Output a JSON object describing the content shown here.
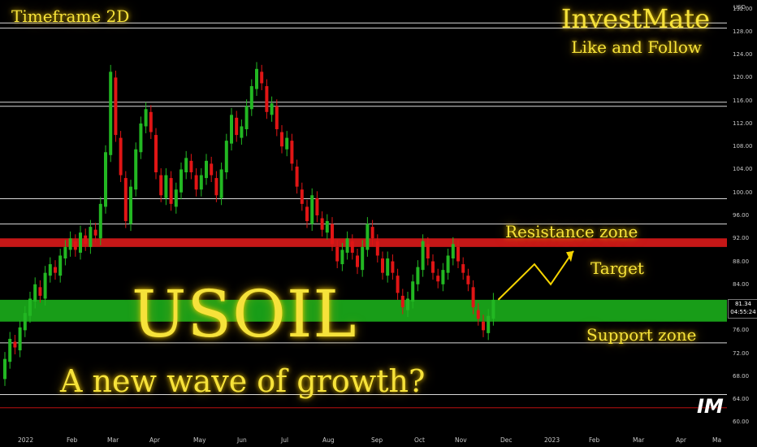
{
  "chart_data": {
    "type": "candlestick",
    "symbol": "USOIL",
    "timeframe_label": "Timeframe 2D",
    "ylabel": "USD",
    "ylim": [
      58.5,
      133.5
    ],
    "y_ticks": [
      "60.00",
      "64.00",
      "68.00",
      "72.00",
      "76.00",
      "80.00",
      "84.00",
      "88.00",
      "92.00",
      "96.00",
      "100.00",
      "104.00",
      "108.00",
      "112.00",
      "116.00",
      "120.00",
      "124.00",
      "128.00",
      "132.00"
    ],
    "x_ticks": [
      "2022",
      "Feb",
      "Mar",
      "Apr",
      "May",
      "Jun",
      "Jul",
      "Aug",
      "Sep",
      "Oct",
      "Nov",
      "Dec",
      "2023",
      "Feb",
      "Mar",
      "Apr",
      "Ma"
    ],
    "current_price": "81.34",
    "countdown": "04:55:24",
    "horizontal_levels": [
      129.5,
      128.6,
      115.7,
      115.0,
      98.9,
      94.5,
      73.8,
      64.8,
      62.5
    ],
    "resistance_zone": {
      "label": "Resistance zone",
      "from": 90.5,
      "to": 92.0,
      "color": "#e81b1b"
    },
    "support_zone": {
      "label": "Support zone",
      "from": 77.5,
      "to": 81.3,
      "color": "#1ec41e"
    },
    "target_label": "Target",
    "candles": [
      [
        67.5,
        71.0
      ],
      [
        70.5,
        74.5
      ],
      [
        74.0,
        73.0
      ],
      [
        72.5,
        76.5
      ],
      [
        76.0,
        79.0
      ],
      [
        78.5,
        81.5
      ],
      [
        81.0,
        84.0
      ],
      [
        83.5,
        82.0
      ],
      [
        81.5,
        86.0
      ],
      [
        85.5,
        87.5
      ],
      [
        87.0,
        86.0
      ],
      [
        85.5,
        89.0
      ],
      [
        88.5,
        90.5
      ],
      [
        90.0,
        92.0
      ],
      [
        91.5,
        90.0
      ],
      [
        89.5,
        93.0
      ],
      [
        92.5,
        91.0
      ],
      [
        90.5,
        94.0
      ],
      [
        93.5,
        92.5
      ],
      [
        92.0,
        98.0
      ],
      [
        97.5,
        107.0
      ],
      [
        106.5,
        121.0
      ],
      [
        120.0,
        110.0
      ],
      [
        109.5,
        103.0
      ],
      [
        102.5,
        95.0
      ],
      [
        94.5,
        101.0
      ],
      [
        100.5,
        107.5
      ],
      [
        107.0,
        112.0
      ],
      [
        111.5,
        114.5
      ],
      [
        114.0,
        110.5
      ],
      [
        110.0,
        103.5
      ],
      [
        103.0,
        99.5
      ],
      [
        99.0,
        103.0
      ],
      [
        102.5,
        98.0
      ],
      [
        97.5,
        100.5
      ],
      [
        100.0,
        104.0
      ],
      [
        103.5,
        106.0
      ],
      [
        105.5,
        103.5
      ],
      [
        103.0,
        100.5
      ],
      [
        100.5,
        103.0
      ],
      [
        102.5,
        105.5
      ],
      [
        105.0,
        103.0
      ],
      [
        102.5,
        99.5
      ],
      [
        99.0,
        104.0
      ],
      [
        103.5,
        109.0
      ],
      [
        108.5,
        113.5
      ],
      [
        113.0,
        110.0
      ],
      [
        109.5,
        111.5
      ],
      [
        111.0,
        115.0
      ],
      [
        114.5,
        118.5
      ],
      [
        118.0,
        121.5
      ],
      [
        121.0,
        119.0
      ],
      [
        118.5,
        114.0
      ],
      [
        113.5,
        115.5
      ],
      [
        115.0,
        111.0
      ],
      [
        110.5,
        108.0
      ],
      [
        107.5,
        109.5
      ],
      [
        109.0,
        105.0
      ],
      [
        104.5,
        101.0
      ],
      [
        100.5,
        98.0
      ],
      [
        97.5,
        95.0
      ],
      [
        94.5,
        99.5
      ],
      [
        99.0,
        96.0
      ],
      [
        95.5,
        93.5
      ],
      [
        93.0,
        95.0
      ],
      [
        94.5,
        91.0
      ],
      [
        90.5,
        88.0
      ],
      [
        87.5,
        90.0
      ],
      [
        89.5,
        92.0
      ],
      [
        91.5,
        89.5
      ],
      [
        89.0,
        87.0
      ],
      [
        86.5,
        90.5
      ],
      [
        90.0,
        94.5
      ],
      [
        94.0,
        92.0
      ],
      [
        91.5,
        89.0
      ],
      [
        88.5,
        86.0
      ],
      [
        85.5,
        88.5
      ],
      [
        88.0,
        86.0
      ],
      [
        85.5,
        82.5
      ],
      [
        82.0,
        80.0
      ],
      [
        79.5,
        81.5
      ],
      [
        81.0,
        84.5
      ],
      [
        84.0,
        87.0
      ],
      [
        86.5,
        91.5
      ],
      [
        91.0,
        88.5
      ],
      [
        88.0,
        86.0
      ],
      [
        85.5,
        84.5
      ],
      [
        84.0,
        86.5
      ],
      [
        86.0,
        89.0
      ],
      [
        88.5,
        91.0
      ],
      [
        90.5,
        88.0
      ],
      [
        87.5,
        86.0
      ],
      [
        85.5,
        84.0
      ],
      [
        83.5,
        80.0
      ],
      [
        79.5,
        78.0
      ],
      [
        77.5,
        76.0
      ],
      [
        75.5,
        78.5
      ],
      [
        78.0,
        81.3
      ]
    ]
  },
  "labels": {
    "timeframe": "Timeframe 2D",
    "brand": "InvestMate",
    "follow": "Like and Follow",
    "resistance": "Resistance zone",
    "target": "Target",
    "support": "Support zone",
    "title": "USOIL",
    "subtitle": "A new wave of growth?",
    "logo": "IM",
    "currency": "USD",
    "price": "81.34",
    "countdown": "04:55:24"
  },
  "colors": {
    "up": "#22b722",
    "down": "#e01515",
    "text_glow": "#f6e23a",
    "arrow": "#f5d400"
  }
}
